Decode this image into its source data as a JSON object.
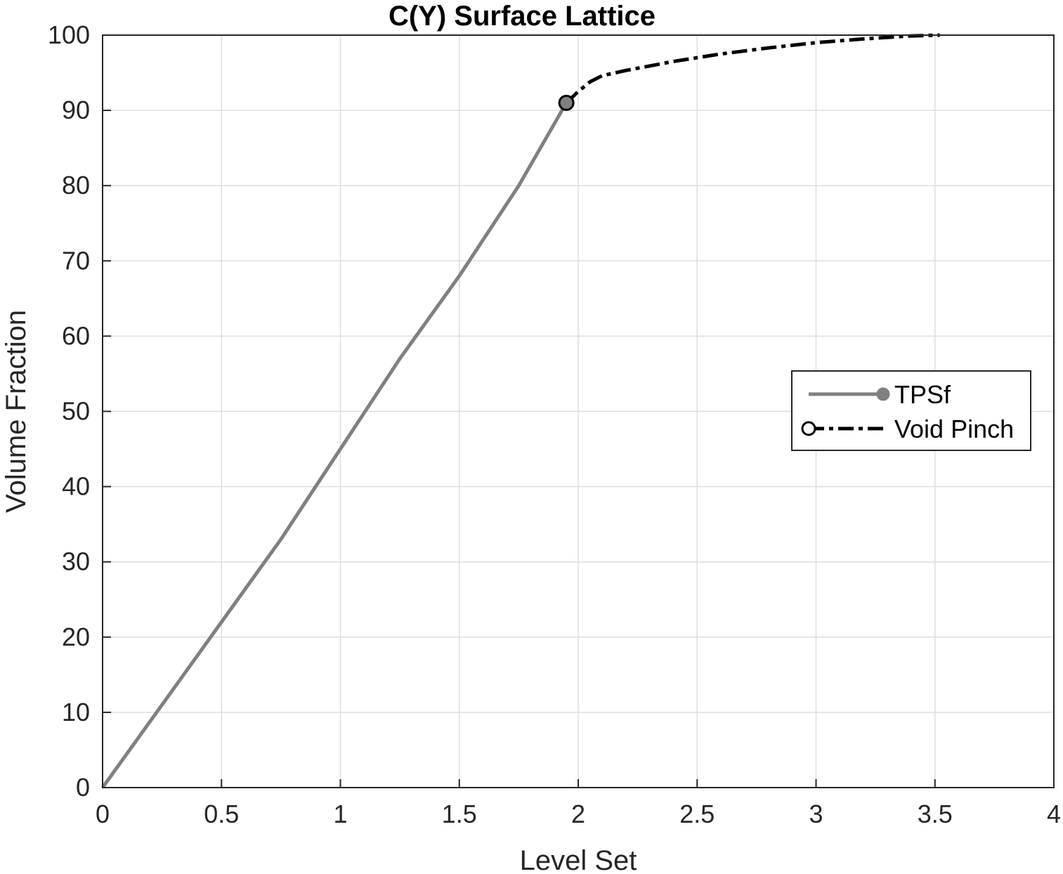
{
  "chart_data": {
    "type": "line",
    "title": "C(Y) Surface Lattice",
    "xlabel": "Level Set",
    "ylabel": "Volume Fraction",
    "xlim": [
      0,
      4
    ],
    "ylim": [
      0,
      100
    ],
    "xticks": [
      0,
      0.5,
      1,
      1.5,
      2,
      2.5,
      3,
      3.5,
      4
    ],
    "xtick_labels": [
      "0",
      "0.5",
      "1",
      "1.5",
      "2",
      "2.5",
      "3",
      "3.5",
      "4"
    ],
    "yticks": [
      0,
      10,
      20,
      30,
      40,
      50,
      60,
      70,
      80,
      90,
      100
    ],
    "ytick_labels": [
      "0",
      "10",
      "20",
      "30",
      "40",
      "50",
      "60",
      "70",
      "80",
      "90",
      "100"
    ],
    "grid": true,
    "legend_position": "right",
    "series": [
      {
        "name": "TPSf",
        "color": "#808080",
        "style": "solid",
        "marker": "filled-circle",
        "x": [
          0,
          0.25,
          0.5,
          0.75,
          1.0,
          1.25,
          1.5,
          1.75,
          1.95
        ],
        "y": [
          0,
          11,
          22,
          33,
          45,
          57,
          68,
          80,
          91
        ]
      },
      {
        "name": "Void Pinch",
        "color": "#000000",
        "style": "dash-dot",
        "marker": "open-circle",
        "x": [
          1.95,
          2.0,
          2.05,
          2.1,
          2.2,
          2.4,
          2.6,
          2.8,
          3.0,
          3.2,
          3.4,
          3.52
        ],
        "y": [
          91,
          92.5,
          93.8,
          94.6,
          95.3,
          96.5,
          97.5,
          98.3,
          99.0,
          99.5,
          99.9,
          100
        ]
      }
    ],
    "marker_point": {
      "x": 1.95,
      "y": 91
    }
  }
}
